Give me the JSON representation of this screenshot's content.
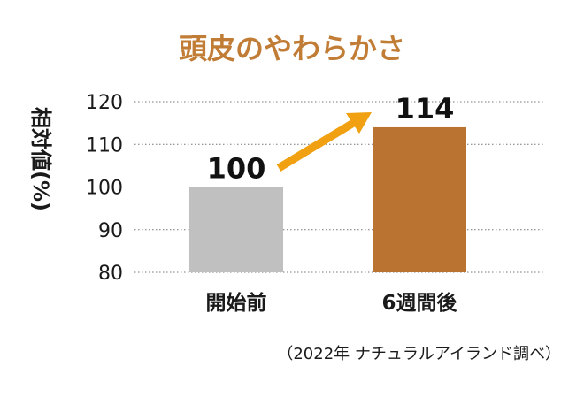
{
  "chart_data": {
    "type": "bar",
    "title": "頭皮のやわらかさ",
    "ylabel": "相対値(%)",
    "xlabel": "",
    "ylim": [
      80,
      120
    ],
    "yticks": [
      80,
      90,
      100,
      110,
      120
    ],
    "categories": [
      "開始前",
      "6週間後"
    ],
    "values": [
      100,
      114
    ],
    "data_labels": [
      "100",
      "114"
    ],
    "bar_colors": [
      "#c0c0c0",
      "#bb7331"
    ],
    "grid": true,
    "annotations": [
      {
        "type": "arrow",
        "from_category": "開始前",
        "to_category": "6週間後",
        "color": "#f0a010"
      }
    ],
    "note": "（2022年 ナチュラルアイランド調べ）"
  },
  "colors": {
    "title": "#c17c35",
    "arrow": "#f0a010",
    "grid": "#777777"
  }
}
